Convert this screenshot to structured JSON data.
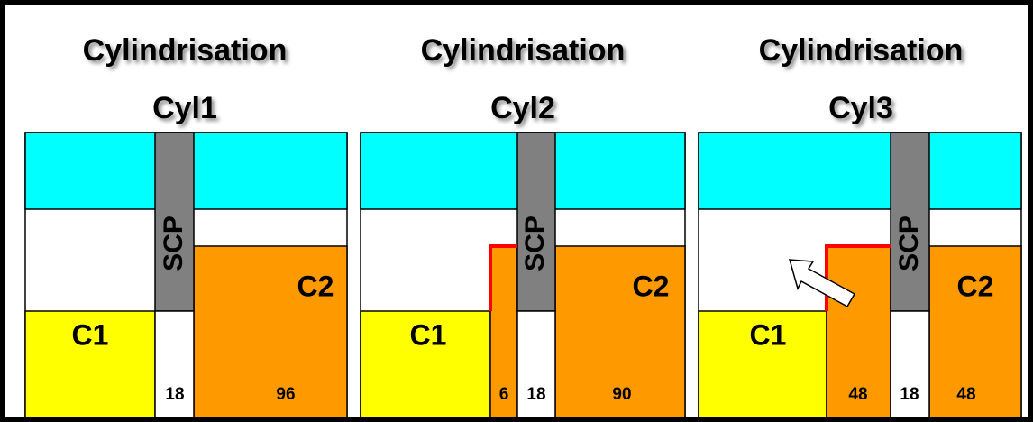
{
  "panels": [
    {
      "title": "Cylindrisation",
      "subtitle": "Cyl1",
      "scp": "SCP",
      "c1": "C1",
      "c2": "C2",
      "gap": 18,
      "c2_size": 96
    },
    {
      "title": "Cylindrisation",
      "subtitle": "Cyl2",
      "scp": "SCP",
      "c1": "C1",
      "c2": "C2",
      "extra": 6,
      "gap": 18,
      "c2_size": 90
    },
    {
      "title": "Cylindrisation",
      "subtitle": "Cyl3",
      "scp": "SCP",
      "c1": "C1",
      "c2": "C2",
      "extra": 48,
      "gap": 18,
      "c2_size": 48
    }
  ]
}
